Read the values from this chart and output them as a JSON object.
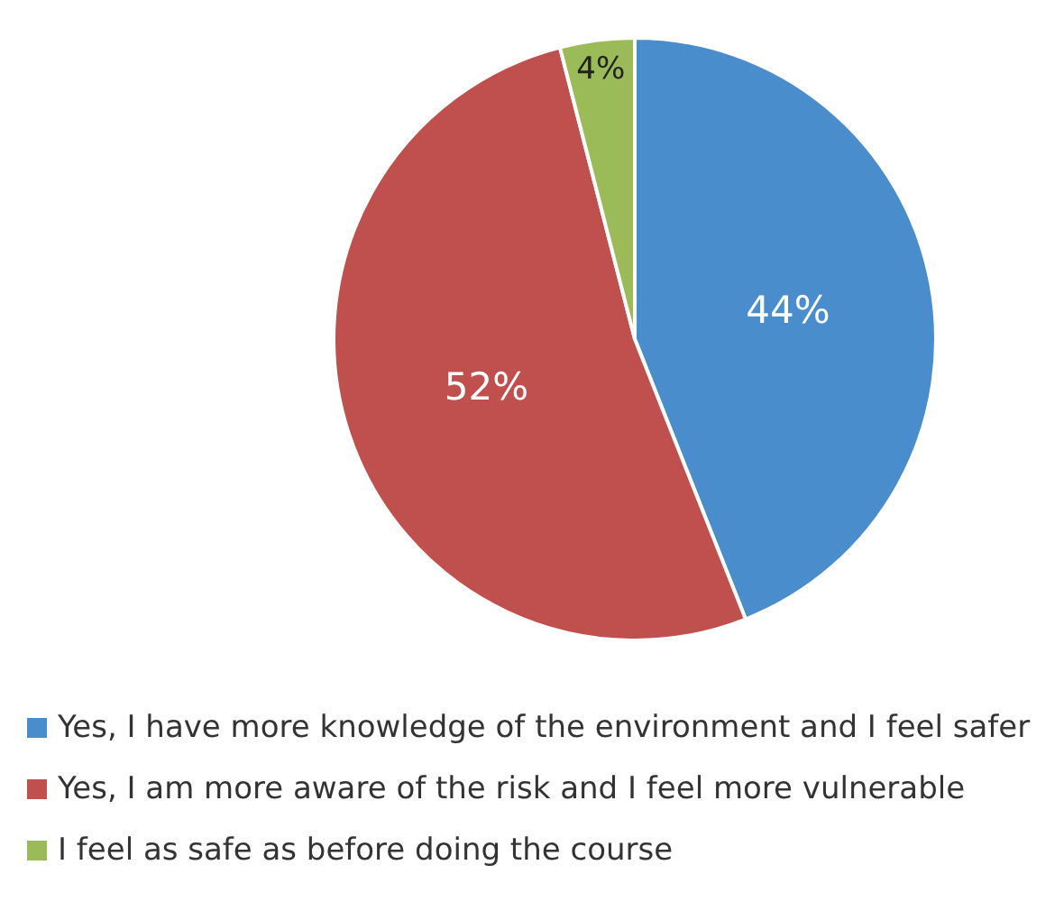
{
  "chart_data": {
    "type": "pie",
    "categories": [
      "Yes, I have more knowledge of the environment and I feel safer",
      "Yes, I am more aware of the risk and I feel more vulnerable",
      "I feel as safe as before doing the course"
    ],
    "values": [
      44,
      52,
      4
    ],
    "colors": [
      "#4a8dcc",
      "#c0504d",
      "#9bbb59"
    ],
    "value_labels": [
      "44%",
      "52%",
      "4%"
    ],
    "legend": "bottom left"
  }
}
